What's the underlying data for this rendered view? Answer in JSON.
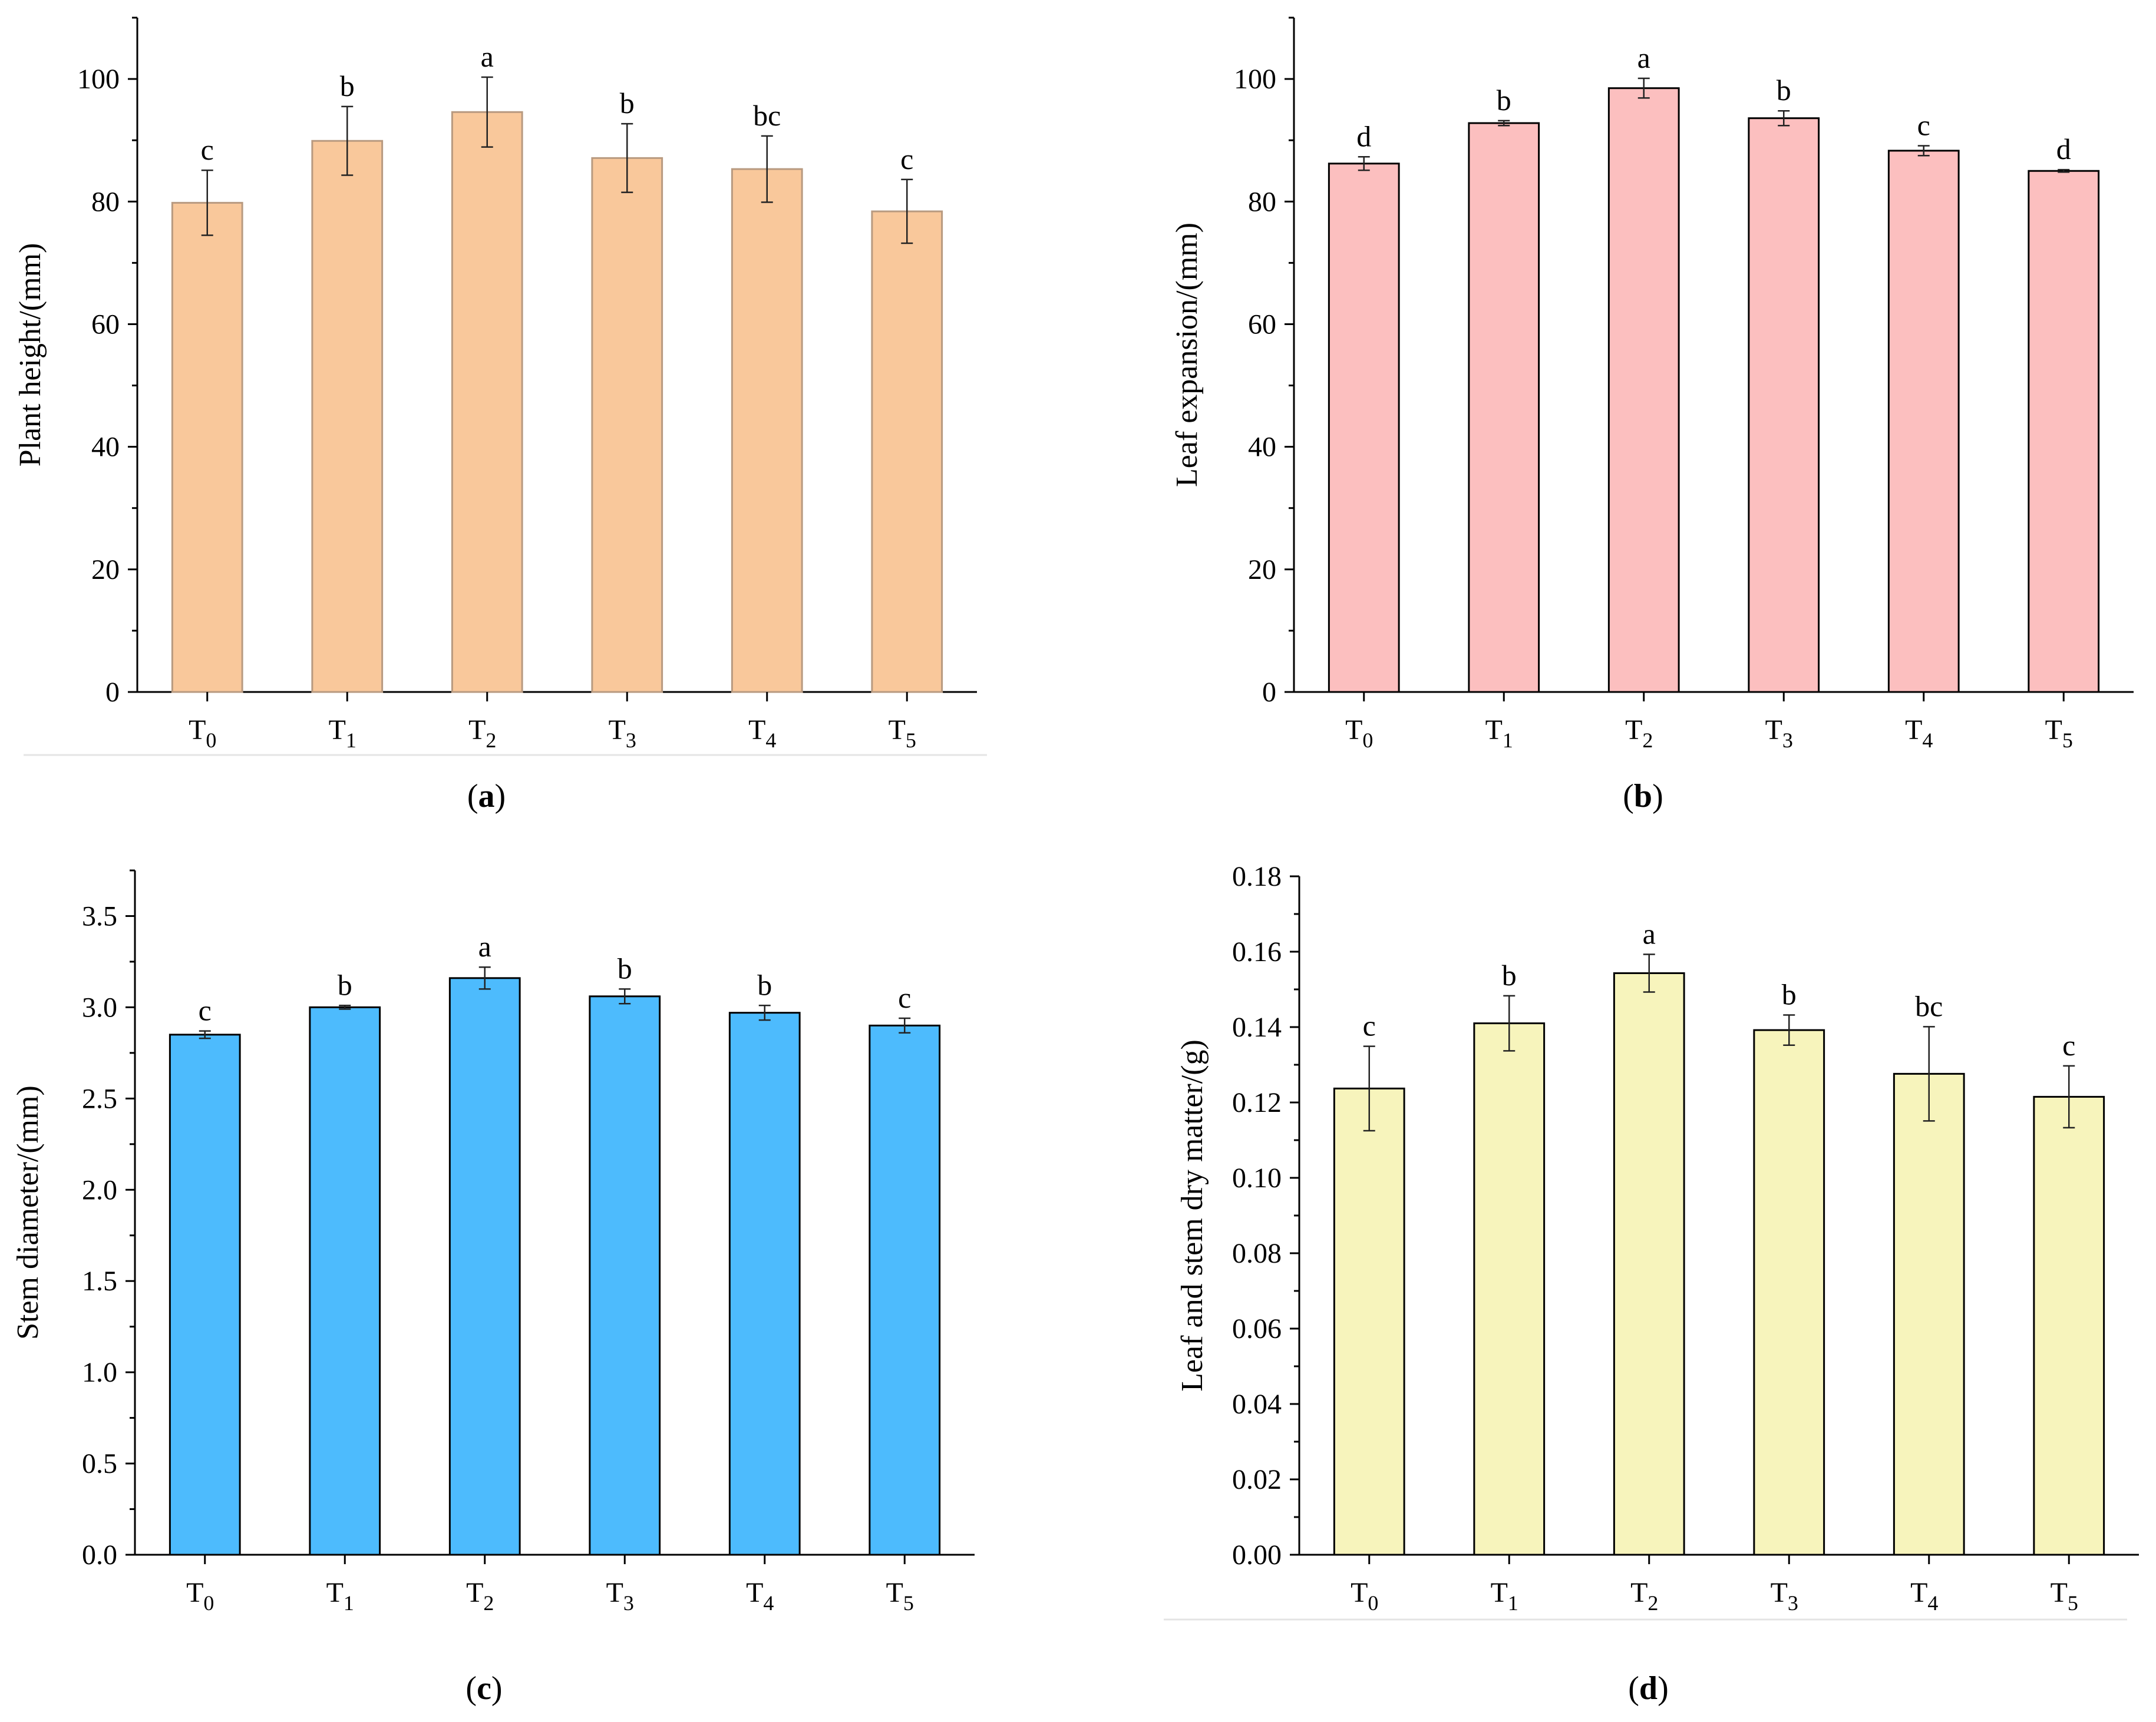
{
  "figure": {
    "panels": [
      "a",
      "b",
      "c",
      "d"
    ]
  },
  "chart_data": [
    {
      "id": "a",
      "type": "bar",
      "caption": "a",
      "title": "",
      "xlabel": "",
      "ylabel": "Plant height/(mm)",
      "categories": [
        "T0",
        "T1",
        "T2",
        "T3",
        "T4",
        "T5"
      ],
      "category_base": "T",
      "category_subscripts": [
        "0",
        "1",
        "2",
        "3",
        "4",
        "5"
      ],
      "values": [
        79.8,
        89.9,
        94.6,
        87.1,
        85.3,
        78.4
      ],
      "errors": [
        5.3,
        5.6,
        5.7,
        5.6,
        5.4,
        5.2
      ],
      "letters": [
        "c",
        "b",
        "a",
        "b",
        "bc",
        "c"
      ],
      "ylim": [
        0,
        110
      ],
      "yticks": [
        0,
        20,
        40,
        60,
        80,
        100
      ],
      "ytick_labels": [
        "0",
        "20",
        "40",
        "60",
        "80",
        "100"
      ],
      "bar_fill": "#f9c89b",
      "bar_stroke": "#b89a80",
      "grid": false
    },
    {
      "id": "b",
      "type": "bar",
      "caption": "b",
      "title": "",
      "xlabel": "",
      "ylabel": "Leaf expansion/(mm)",
      "categories": [
        "T0",
        "T1",
        "T2",
        "T3",
        "T4",
        "T5"
      ],
      "category_base": "T",
      "category_subscripts": [
        "0",
        "1",
        "2",
        "3",
        "4",
        "5"
      ],
      "values": [
        86.2,
        92.8,
        98.5,
        93.6,
        88.3,
        85.0
      ],
      "errors": [
        1.1,
        0.4,
        1.6,
        1.2,
        0.8,
        0.2
      ],
      "letters": [
        "d",
        "b",
        "a",
        "b",
        "c",
        "d"
      ],
      "ylim": [
        0,
        110
      ],
      "yticks": [
        0,
        20,
        40,
        60,
        80,
        100
      ],
      "ytick_labels": [
        "0",
        "20",
        "40",
        "60",
        "80",
        "100"
      ],
      "bar_fill": "#fcbfbf",
      "bar_stroke": "#000000",
      "grid": false
    },
    {
      "id": "c",
      "type": "bar",
      "caption": "c",
      "title": "",
      "xlabel": "",
      "ylabel": "Stem diameter/(mm)",
      "categories": [
        "T0",
        "T1",
        "T2",
        "T3",
        "T4",
        "T5"
      ],
      "category_base": "T",
      "category_subscripts": [
        "0",
        "1",
        "2",
        "3",
        "4",
        "5"
      ],
      "values": [
        2.85,
        3.0,
        3.16,
        3.06,
        2.97,
        2.9
      ],
      "errors": [
        0.02,
        0.01,
        0.06,
        0.04,
        0.04,
        0.04
      ],
      "letters": [
        "c",
        "b",
        "a",
        "b",
        "b",
        "c"
      ],
      "ylim": [
        0,
        3.75
      ],
      "yticks": [
        0.0,
        0.5,
        1.0,
        1.5,
        2.0,
        2.5,
        3.0,
        3.5
      ],
      "ytick_labels": [
        "0.0",
        "0.5",
        "1.0",
        "1.5",
        "2.0",
        "2.5",
        "3.0",
        "3.5"
      ],
      "bar_fill": "#4dbbfd",
      "bar_stroke": "#000000",
      "grid": false
    },
    {
      "id": "d",
      "type": "bar",
      "caption": "d",
      "title": "",
      "xlabel": "",
      "ylabel": "Leaf and stem dry matter/(g)",
      "categories": [
        "T0",
        "T1",
        "T2",
        "T3",
        "T4",
        "T5"
      ],
      "category_base": "T",
      "category_subscripts": [
        "0",
        "1",
        "2",
        "3",
        "4",
        "5"
      ],
      "values": [
        0.1237,
        0.141,
        0.1543,
        0.1392,
        0.1276,
        0.1215
      ],
      "errors": [
        0.0112,
        0.0073,
        0.005,
        0.004,
        0.0125,
        0.0082
      ],
      "letters": [
        "c",
        "b",
        "a",
        "b",
        "bc",
        "c"
      ],
      "ylim": [
        0,
        0.18
      ],
      "yticks": [
        0.0,
        0.02,
        0.04,
        0.06,
        0.08,
        0.1,
        0.12,
        0.14,
        0.16,
        0.18
      ],
      "ytick_labels": [
        "0.00",
        "0.02",
        "0.04",
        "0.06",
        "0.08",
        "0.10",
        "0.12",
        "0.14",
        "0.16",
        "0.18"
      ],
      "bar_fill": "#f7f4bc",
      "bar_stroke": "#000000",
      "grid": false
    }
  ]
}
